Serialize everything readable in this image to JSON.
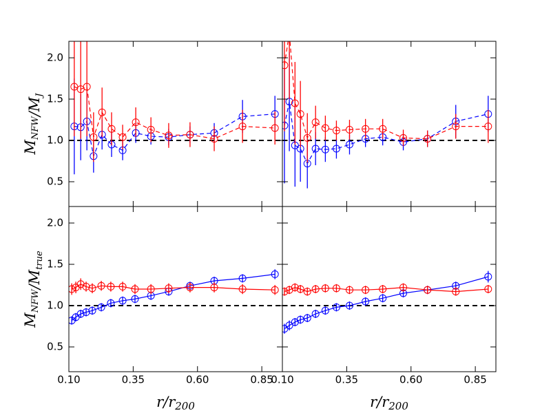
{
  "chart_data": [
    {
      "type": "errorbar-line",
      "xlim": [
        0.1,
        0.93
      ],
      "ylim": [
        0.2,
        2.2
      ],
      "xticks": [
        0.1,
        0.35,
        0.6,
        0.85
      ],
      "yticks": [
        0.5,
        {
          "value": 1,
          "label": "1.0"
        },
        1.5,
        {
          "value": 2,
          "label": "2.0"
        }
      ],
      "ylabel": [
        {
          "text": "M",
          "sub": "NFW"
        },
        {
          "text": "/M",
          "sub": "J"
        }
      ],
      "hline": 1,
      "linestyle": "dashed",
      "x": [
        0.121,
        0.146,
        0.17,
        0.196,
        0.229,
        0.266,
        0.309,
        0.36,
        0.419,
        0.488,
        0.571,
        0.665,
        0.775,
        0.901
      ],
      "series": [
        {
          "color": "#0000ff",
          "values": [
            1.17,
            1.16,
            1.23,
            0.81,
            1.07,
            0.95,
            0.88,
            1.09,
            1.05,
            1.04,
            1.07,
            1.09,
            1.29,
            1.32
          ],
          "errors": [
            0.58,
            0.4,
            0.35,
            0.2,
            0.18,
            0.15,
            0.12,
            0.12,
            0.1,
            0.1,
            0.1,
            0.12,
            0.2,
            0.22
          ]
        },
        {
          "color": "#ff0000",
          "values": [
            1.65,
            1.62,
            1.65,
            1.04,
            1.34,
            1.14,
            1.04,
            1.22,
            1.13,
            1.06,
            1.07,
            1.02,
            1.17,
            1.15
          ],
          "errors": [
            0.6,
            0.6,
            0.6,
            0.3,
            0.3,
            0.2,
            0.15,
            0.18,
            0.15,
            0.15,
            0.15,
            0.15,
            0.2,
            0.2
          ]
        }
      ]
    },
    {
      "type": "errorbar-line",
      "xlim": [
        0.1,
        0.93
      ],
      "ylim": [
        0.2,
        2.2
      ],
      "xticks": [
        0.1,
        0.35,
        0.6,
        0.85
      ],
      "yticks": [
        0.5,
        1,
        1.5,
        2
      ],
      "hline": 1,
      "linestyle": "dashed",
      "x": [
        0.108,
        0.127,
        0.149,
        0.17,
        0.197,
        0.229,
        0.267,
        0.31,
        0.361,
        0.423,
        0.49,
        0.57,
        0.664,
        0.774,
        0.9
      ],
      "series": [
        {
          "color": "#0000ff",
          "values": [
            1.18,
            1.47,
            0.94,
            0.9,
            0.72,
            0.9,
            0.89,
            0.9,
            0.95,
            1.02,
            1.04,
            0.98,
            1.02,
            1.23,
            1.32
          ],
          "errors": [
            0.7,
            0.6,
            0.5,
            0.4,
            0.3,
            0.2,
            0.15,
            0.12,
            0.12,
            0.1,
            0.1,
            0.1,
            0.1,
            0.2,
            0.22
          ]
        },
        {
          "color": "#ff0000",
          "values": [
            1.91,
            2.3,
            1.45,
            1.32,
            1.03,
            1.22,
            1.15,
            1.12,
            1.13,
            1.14,
            1.14,
            1.03,
            1.02,
            1.17,
            1.17
          ],
          "errors": [
            0.8,
            0.8,
            0.5,
            0.4,
            0.3,
            0.2,
            0.15,
            0.12,
            0.12,
            0.12,
            0.12,
            0.1,
            0.1,
            0.15,
            0.2
          ]
        }
      ]
    },
    {
      "type": "errorbar-line",
      "xlim": [
        0.1,
        0.93
      ],
      "ylim": [
        0.2,
        2.2
      ],
      "xticks": [
        {
          "value": 0.1,
          "label": "0.10"
        },
        {
          "value": 0.35,
          "label": "0.35"
        },
        {
          "value": 0.6,
          "label": "0.60"
        },
        {
          "value": 0.85,
          "label": "0.85"
        }
      ],
      "yticks": [
        0.5,
        {
          "value": 1,
          "label": "1.0"
        },
        1.5,
        {
          "value": 2,
          "label": "2.0"
        }
      ],
      "xlabel": [
        {
          "text": "r/r",
          "sub": "200"
        }
      ],
      "ylabel": [
        {
          "text": "M",
          "sub": "NFW"
        },
        {
          "text": "/M",
          "sub": "true"
        }
      ],
      "hline": 1,
      "linestyle": "solid",
      "x": [
        0.111,
        0.127,
        0.146,
        0.167,
        0.191,
        0.226,
        0.263,
        0.309,
        0.357,
        0.419,
        0.488,
        0.571,
        0.665,
        0.775,
        0.901
      ],
      "series": [
        {
          "color": "#0000ff",
          "values": [
            0.82,
            0.86,
            0.9,
            0.92,
            0.94,
            0.98,
            1.03,
            1.06,
            1.08,
            1.12,
            1.17,
            1.24,
            1.3,
            1.33,
            1.38
          ],
          "errors": [
            0.05,
            0.05,
            0.05,
            0.05,
            0.05,
            0.05,
            0.05,
            0.05,
            0.05,
            0.05,
            0.05,
            0.05,
            0.05,
            0.05,
            0.06
          ]
        },
        {
          "color": "#ff0000",
          "values": [
            1.2,
            1.22,
            1.26,
            1.23,
            1.21,
            1.24,
            1.23,
            1.23,
            1.2,
            1.2,
            1.21,
            1.22,
            1.22,
            1.2,
            1.19
          ],
          "errors": [
            0.07,
            0.07,
            0.07,
            0.06,
            0.06,
            0.06,
            0.06,
            0.06,
            0.06,
            0.06,
            0.06,
            0.06,
            0.06,
            0.06,
            0.06
          ]
        }
      ]
    },
    {
      "type": "errorbar-line",
      "xlim": [
        0.1,
        0.93
      ],
      "ylim": [
        0.2,
        2.2
      ],
      "xticks": [
        {
          "value": 0.1,
          "label": "0.10"
        },
        {
          "value": 0.35,
          "label": "0.35"
        },
        {
          "value": 0.6,
          "label": "0.60"
        },
        {
          "value": 0.85,
          "label": "0.85"
        }
      ],
      "yticks": [
        0.5,
        1,
        1.5,
        2
      ],
      "xlabel": [
        {
          "text": "r/r",
          "sub": "200"
        }
      ],
      "hline": 1,
      "linestyle": "solid",
      "x": [
        0.108,
        0.127,
        0.149,
        0.17,
        0.197,
        0.229,
        0.267,
        0.31,
        0.361,
        0.423,
        0.49,
        0.57,
        0.664,
        0.774,
        0.9
      ],
      "series": [
        {
          "color": "#0000ff",
          "values": [
            0.72,
            0.76,
            0.8,
            0.83,
            0.85,
            0.9,
            0.94,
            0.98,
            1.0,
            1.05,
            1.09,
            1.15,
            1.19,
            1.24,
            1.35
          ],
          "errors": [
            0.06,
            0.06,
            0.05,
            0.05,
            0.05,
            0.05,
            0.05,
            0.05,
            0.05,
            0.05,
            0.05,
            0.05,
            0.05,
            0.05,
            0.07
          ]
        },
        {
          "color": "#ff0000",
          "values": [
            1.17,
            1.19,
            1.22,
            1.2,
            1.17,
            1.2,
            1.21,
            1.21,
            1.19,
            1.19,
            1.2,
            1.22,
            1.19,
            1.17,
            1.2
          ],
          "errors": [
            0.05,
            0.05,
            0.05,
            0.05,
            0.05,
            0.05,
            0.05,
            0.05,
            0.05,
            0.05,
            0.05,
            0.05,
            0.05,
            0.05,
            0.05
          ]
        }
      ]
    }
  ]
}
